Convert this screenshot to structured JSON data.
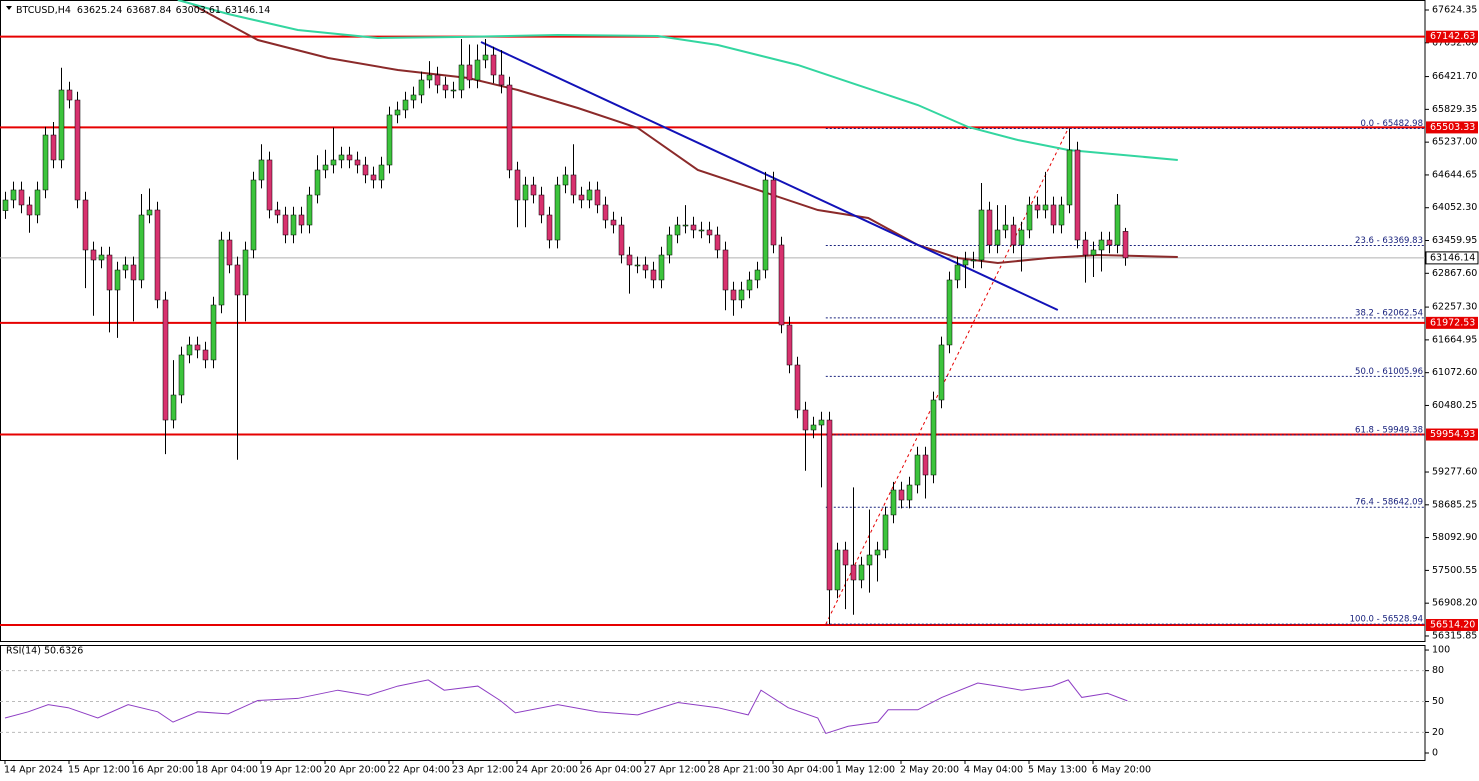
{
  "chart_data": {
    "type": "candlestick",
    "symbol": "BTCUSD,H4",
    "up_color": "#3cc43c",
    "down_color": "#d8326f",
    "wick_color": "#000000",
    "xlim": [
      -0.625,
      177.5
    ],
    "ylim": [
      56225,
      67805
    ],
    "yticks": [
      67624.35,
      {
        "value": 67032,
        "label": "67032.00"
      },
      {
        "value": 66421.7,
        "label": "66421.70"
      },
      65829.35,
      {
        "value": 65237,
        "label": "65237.00"
      },
      64644.65,
      {
        "value": 64052.3,
        "label": "64052.30"
      },
      63459.95,
      {
        "value": 62867.6,
        "label": "62867.60"
      },
      {
        "value": 62257.3,
        "label": "62257.30"
      },
      61664.95,
      {
        "value": 61072.6,
        "label": "61072.60"
      },
      60480.25,
      {
        "value": 59277.6,
        "label": "59277.60"
      },
      58685.25,
      {
        "value": 58092.9,
        "label": "58092.90"
      },
      57500.55,
      {
        "value": 56908.2,
        "label": "56908.20"
      },
      56315.85
    ],
    "categories": [
      "14 Apr 2024",
      null,
      null,
      null,
      null,
      null,
      null,
      null,
      "15 Apr 12:00",
      null,
      null,
      null,
      null,
      null,
      null,
      null,
      "16 Apr 20:00",
      null,
      null,
      null,
      null,
      null,
      null,
      null,
      "18 Apr 04:00",
      null,
      null,
      null,
      null,
      null,
      null,
      null,
      "19 Apr 12:00",
      null,
      null,
      null,
      null,
      null,
      null,
      null,
      "20 Apr 20:00",
      null,
      null,
      null,
      null,
      null,
      null,
      null,
      "22 Apr 04:00",
      null,
      null,
      null,
      null,
      null,
      null,
      null,
      "23 Apr 12:00",
      null,
      null,
      null,
      null,
      null,
      null,
      null,
      "24 Apr 20:00",
      null,
      null,
      null,
      null,
      null,
      null,
      null,
      "26 Apr 04:00",
      null,
      null,
      null,
      null,
      null,
      null,
      null,
      "27 Apr 12:00",
      null,
      null,
      null,
      null,
      null,
      null,
      null,
      "28 Apr 21:00",
      null,
      null,
      null,
      null,
      null,
      null,
      null,
      "30 Apr 04:00",
      null,
      null,
      null,
      null,
      null,
      null,
      null,
      "1 May 12:00",
      null,
      null,
      null,
      null,
      null,
      null,
      null,
      "2 May 20:00",
      null,
      null,
      null,
      null,
      null,
      null,
      null,
      "4 May 04:00",
      null,
      null,
      null,
      null,
      null,
      null,
      null,
      "5 May 13:00",
      null,
      null,
      null,
      null,
      null,
      null,
      null,
      "6 May 20:00",
      null,
      null,
      null,
      null
    ],
    "candles": [
      [
        64000,
        64342,
        63850,
        64192
      ],
      [
        64192,
        64523,
        64042,
        64373
      ],
      [
        64373,
        64523,
        63952,
        64102
      ],
      [
        64102,
        64252,
        63600,
        63921
      ],
      [
        63921,
        64523,
        63771,
        64373
      ],
      [
        64373,
        65516,
        64223,
        65366
      ],
      [
        65366,
        65600,
        64765,
        64915
      ],
      [
        64915,
        66580,
        64765,
        66179
      ],
      [
        66179,
        66329,
        65848,
        65998
      ],
      [
        65998,
        66148,
        64042,
        64192
      ],
      [
        64192,
        64342,
        62600,
        63289
      ],
      [
        63289,
        63439,
        62100,
        63108
      ],
      [
        63108,
        63348,
        62958,
        63198
      ],
      [
        63198,
        63348,
        61800,
        62566
      ],
      [
        62566,
        63077,
        61700,
        62927
      ],
      [
        62927,
        63168,
        62777,
        63018
      ],
      [
        63018,
        63168,
        62000,
        62747
      ],
      [
        62747,
        64300,
        62597,
        63921
      ],
      [
        63921,
        64400,
        63771,
        64011
      ],
      [
        64011,
        64161,
        62236,
        62386
      ],
      [
        62386,
        62536,
        59600,
        60217
      ],
      [
        60217,
        61300,
        60067,
        60669
      ],
      [
        60669,
        61542,
        60519,
        61392
      ],
      [
        61392,
        61723,
        61242,
        61573
      ],
      [
        61573,
        61723,
        61332,
        61482
      ],
      [
        61482,
        61632,
        61152,
        61302
      ],
      [
        61302,
        62445,
        61152,
        62295
      ],
      [
        62295,
        63619,
        62145,
        63469
      ],
      [
        63469,
        63619,
        62868,
        63018
      ],
      [
        63018,
        63168,
        59500,
        62476
      ],
      [
        62476,
        63439,
        62000,
        63289
      ],
      [
        63289,
        64703,
        63139,
        64553
      ],
      [
        64553,
        65200,
        64403,
        64915
      ],
      [
        64915,
        65065,
        63861,
        64011
      ],
      [
        64011,
        64161,
        63771,
        63921
      ],
      [
        63921,
        64071,
        63410,
        63560
      ],
      [
        63560,
        64071,
        63410,
        63921
      ],
      [
        63921,
        64071,
        63590,
        63740
      ],
      [
        63740,
        64432,
        63590,
        64282
      ],
      [
        64282,
        65000,
        64132,
        64734
      ],
      [
        64734,
        65100,
        64584,
        64824
      ],
      [
        64824,
        65500,
        64674,
        64915
      ],
      [
        64915,
        65155,
        64765,
        65005
      ],
      [
        65005,
        65155,
        64765,
        64915
      ],
      [
        64915,
        65065,
        64674,
        64824
      ],
      [
        64824,
        64974,
        64494,
        64644
      ],
      [
        64644,
        64794,
        64403,
        64553
      ],
      [
        64553,
        64974,
        64403,
        64824
      ],
      [
        64824,
        65878,
        64674,
        65728
      ],
      [
        65728,
        65968,
        65578,
        65818
      ],
      [
        65818,
        66148,
        65668,
        65998
      ],
      [
        65998,
        66239,
        65848,
        66089
      ],
      [
        66089,
        66510,
        65939,
        66360
      ],
      [
        66360,
        66700,
        66210,
        66450
      ],
      [
        66450,
        66600,
        66119,
        66269
      ],
      [
        66269,
        66419,
        66029,
        66179
      ],
      [
        66179,
        66329,
        66029,
        66179
      ],
      [
        66179,
        67100,
        66029,
        66631
      ],
      [
        66631,
        67000,
        66210,
        66360
      ],
      [
        66360,
        67000,
        66210,
        66721
      ],
      [
        66721,
        67100,
        66571,
        66811
      ],
      [
        66811,
        66961,
        66300,
        66450
      ],
      [
        66450,
        66900,
        66119,
        66269
      ],
      [
        66269,
        66419,
        64584,
        64734
      ],
      [
        64734,
        64884,
        63700,
        64192
      ],
      [
        64192,
        64613,
        63700,
        64463
      ],
      [
        64463,
        64613,
        64132,
        64282
      ],
      [
        64282,
        64432,
        63771,
        63921
      ],
      [
        63921,
        64071,
        63319,
        63469
      ],
      [
        63469,
        64613,
        63319,
        64463
      ],
      [
        64463,
        64794,
        64313,
        64644
      ],
      [
        64644,
        65200,
        64132,
        64282
      ],
      [
        64282,
        64432,
        64042,
        64192
      ],
      [
        64192,
        64523,
        64042,
        64373
      ],
      [
        64373,
        64523,
        63952,
        64102
      ],
      [
        64102,
        64252,
        63680,
        63830
      ],
      [
        63830,
        63980,
        63590,
        63740
      ],
      [
        63740,
        63890,
        63048,
        63198
      ],
      [
        63198,
        63348,
        62500,
        63018
      ],
      [
        63018,
        63168,
        62868,
        63018
      ],
      [
        63018,
        63168,
        62777,
        62927
      ],
      [
        62927,
        63077,
        62597,
        62747
      ],
      [
        62747,
        63348,
        62597,
        63198
      ],
      [
        63198,
        63710,
        63048,
        63560
      ],
      [
        63560,
        63890,
        63410,
        63740
      ],
      [
        63740,
        64100,
        63590,
        63740
      ],
      [
        63740,
        63890,
        63500,
        63650
      ],
      [
        63650,
        63800,
        63500,
        63650
      ],
      [
        63650,
        63800,
        63410,
        63560
      ],
      [
        63560,
        63710,
        63139,
        63289
      ],
      [
        63289,
        63439,
        62200,
        62566
      ],
      [
        62566,
        62716,
        62100,
        62386
      ],
      [
        62386,
        62716,
        62236,
        62566
      ],
      [
        62566,
        62897,
        62416,
        62747
      ],
      [
        62747,
        63077,
        62597,
        62927
      ],
      [
        62927,
        64700,
        62777,
        64553
      ],
      [
        64553,
        64703,
        63229,
        63379
      ],
      [
        63379,
        63529,
        61784,
        61934
      ],
      [
        61934,
        62084,
        61061,
        61211
      ],
      [
        61211,
        61361,
        60248,
        60398
      ],
      [
        60398,
        60548,
        59300,
        60037
      ],
      [
        60037,
        60277,
        59887,
        60127
      ],
      [
        60127,
        60367,
        59000,
        60217
      ],
      [
        60217,
        60367,
        56529,
        57147
      ],
      [
        57147,
        58000,
        56997,
        57869
      ],
      [
        57869,
        58019,
        56800,
        57598
      ],
      [
        57598,
        59000,
        56700,
        57327
      ],
      [
        57327,
        57748,
        57177,
        57598
      ],
      [
        57598,
        58600,
        57100,
        57779
      ],
      [
        57779,
        58019,
        57300,
        57869
      ],
      [
        57869,
        58652,
        57719,
        58502
      ],
      [
        58502,
        59100,
        58352,
        58953
      ],
      [
        58953,
        59103,
        58622,
        58772
      ],
      [
        58772,
        59193,
        58622,
        59043
      ],
      [
        59043,
        59735,
        58893,
        59585
      ],
      [
        59585,
        59735,
        58800,
        59224
      ],
      [
        59224,
        60729,
        59074,
        60579
      ],
      [
        60579,
        61723,
        60429,
        61573
      ],
      [
        61573,
        62897,
        61423,
        62747
      ],
      [
        62747,
        63168,
        62597,
        63018
      ],
      [
        63018,
        63258,
        62600,
        63108
      ],
      [
        63108,
        63258,
        62958,
        63108
      ],
      [
        63108,
        64500,
        62958,
        64011
      ],
      [
        64011,
        64161,
        63229,
        63379
      ],
      [
        63379,
        64100,
        63229,
        63650
      ],
      [
        63650,
        64100,
        63500,
        63740
      ],
      [
        63740,
        63890,
        63229,
        63379
      ],
      [
        63379,
        63800,
        62900,
        63650
      ],
      [
        63650,
        64252,
        63500,
        64102
      ],
      [
        64102,
        64252,
        63861,
        64011
      ],
      [
        64011,
        64700,
        63861,
        64102
      ],
      [
        64102,
        64252,
        63590,
        63740
      ],
      [
        63740,
        64252,
        63590,
        64102
      ],
      [
        64102,
        65483,
        63952,
        65095
      ],
      [
        65095,
        65245,
        63319,
        63469
      ],
      [
        63469,
        63619,
        62700,
        63198
      ],
      [
        63198,
        63439,
        62800,
        63289
      ],
      [
        63289,
        63619,
        62900,
        63469
      ],
      [
        63469,
        63619,
        63229,
        63379
      ],
      [
        63379,
        64300,
        63229,
        64102
      ],
      [
        63625.24,
        63687.84,
        63003.61,
        63146.14
      ]
    ],
    "moving_averages": [
      {
        "color": "#8b2a2a",
        "x": [
          23.5,
          31.6,
          40.4,
          49.1,
          57.9,
          64.1,
          71.6,
          79.1,
          86.6,
          94.1,
          101.6,
          107.9,
          114.1,
          119.1,
          124.1,
          130.4,
          136.6,
          146.6
        ],
        "values": [
          67715,
          67082,
          66757,
          66540,
          66396,
          66179,
          65854,
          65493,
          64734,
          64373,
          64011,
          63867,
          63379,
          63144,
          63054,
          63144,
          63198,
          63162
        ]
      },
      {
        "color": "#33d6a0",
        "x": [
          21.6,
          27.9,
          36.6,
          46.6,
          56.6,
          69.1,
          81.6,
          89.1,
          99.1,
          106.6,
          114.1,
          120.4,
          126.6,
          132.9,
          146.6
        ],
        "values": [
          67805,
          67552,
          67263,
          67119,
          67137,
          67173,
          67155,
          66992,
          66631,
          66269,
          65908,
          65511,
          65276,
          65095,
          64915
        ]
      }
    ],
    "trendline": {
      "color": "#1212b8",
      "x": [
        59.5,
        131.6
      ],
      "values": [
        67046,
        62205
      ]
    },
    "level_color": "#e60000",
    "levels": [
      67142.63,
      65503.33,
      61972.53,
      59954.93,
      {
        "value": 56514.2,
        "label": "56514.20"
      }
    ],
    "current_price_color": "#b0b0b0",
    "fibonacci": {
      "color": "#e60000",
      "line_color": "#1a237e",
      "x": [
        102.6,
        132.9
      ],
      "levels": [
        {
          "value": 65482.98,
          "label": "0.0 - 65482.98"
        },
        {
          "value": 63369.83,
          "label": "23.6 - 63369.83"
        },
        {
          "value": 62062.54,
          "label": "38.2 - 62062.54"
        },
        {
          "value": 61005.96,
          "label": "50.0 - 61005.96"
        },
        {
          "value": 59949.38,
          "label": "61.8 - 59949.38"
        },
        {
          "value": 58642.09,
          "label": "76.4 - 58642.09"
        },
        {
          "value": 56528.94,
          "label": "100.0 - 56528.94"
        }
      ]
    },
    "rsi": {
      "title": "RSI(14) 50.6326",
      "color": "#8e3ec4",
      "ylim": [
        -6.8,
        104.9
      ],
      "yticks": [
        100,
        80,
        50,
        20,
        0
      ],
      "levels": [
        80,
        50,
        20
      ],
      "x": [
        0,
        2.9,
        5.4,
        7.9,
        11.6,
        15.4,
        19.1,
        21,
        24.1,
        27.9,
        31.6,
        36.6,
        41.6,
        45.4,
        49.1,
        52.9,
        54.9,
        59.1,
        61.9,
        63.8,
        69.1,
        74.1,
        79.1,
        84.1,
        89.1,
        92.9,
        94.5,
        97.9,
        101.6,
        102.6,
        105.4,
        109.1,
        110.4,
        114.1,
        117.1,
        121.6,
        124.1,
        127.1,
        130.9,
        132.9,
        134.6,
        137.8,
        140.3
      ],
      "values": [
        34,
        40,
        47,
        44,
        34,
        47,
        40,
        30,
        40,
        38,
        51,
        53,
        61,
        56,
        65,
        71,
        61,
        65,
        51,
        39,
        47,
        40,
        37,
        49,
        44,
        37,
        61,
        44,
        34,
        19,
        26,
        30,
        42,
        42,
        54,
        68,
        65,
        61,
        65,
        71,
        54,
        58,
        50.6326
      ]
    }
  }
}
